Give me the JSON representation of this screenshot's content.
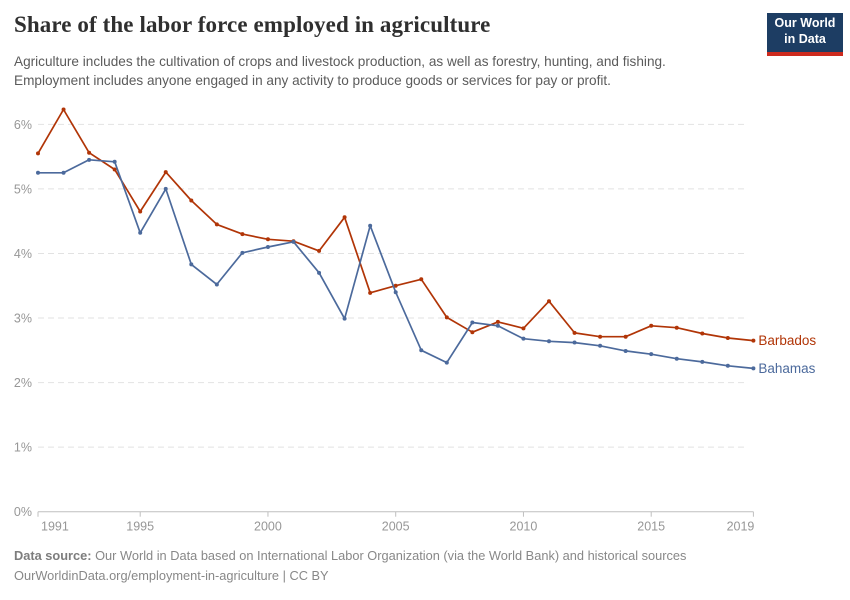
{
  "header": {
    "title": "Share of the labor force employed in agriculture",
    "subtitle_line1": "Agriculture includes the cultivation of crops and livestock production, as well as forestry, hunting, and fishing.",
    "subtitle_line2": "Employment includes anyone engaged in any activity to produce goods or services for pay or profit."
  },
  "logo": {
    "line1": "Our World",
    "line2": "in Data",
    "bg_color": "#1D3D63",
    "stripe_color": "#CD2A1E"
  },
  "chart_data": {
    "type": "line",
    "title": "Share of the labor force employed in agriculture",
    "unit": "%",
    "x": [
      1991,
      1992,
      1993,
      1994,
      1995,
      1996,
      1997,
      1998,
      1999,
      2000,
      2001,
      2002,
      2003,
      2004,
      2005,
      2006,
      2007,
      2008,
      2009,
      2010,
      2011,
      2012,
      2013,
      2014,
      2015,
      2016,
      2017,
      2018,
      2019
    ],
    "series": [
      {
        "name": "Barbados",
        "color": "#B13507",
        "values": [
          5.55,
          6.23,
          5.56,
          5.3,
          4.65,
          5.26,
          4.82,
          4.45,
          4.3,
          4.22,
          4.19,
          4.04,
          4.56,
          3.39,
          3.5,
          3.6,
          3.01,
          2.78,
          2.94,
          2.84,
          3.26,
          2.77,
          2.71,
          2.71,
          2.88,
          2.85,
          2.76,
          2.69,
          2.65
        ]
      },
      {
        "name": "Bahamas",
        "color": "#4C6A9C",
        "values": [
          5.25,
          5.25,
          5.45,
          5.42,
          4.32,
          5.0,
          3.83,
          3.52,
          4.01,
          4.1,
          4.18,
          3.7,
          2.99,
          4.43,
          3.4,
          2.5,
          2.31,
          2.93,
          2.88,
          2.68,
          2.64,
          2.62,
          2.57,
          2.49,
          2.44,
          2.37,
          2.32,
          2.26,
          2.22
        ]
      }
    ],
    "xticks": [
      1991,
      1995,
      2000,
      2005,
      2010,
      2015,
      2019
    ],
    "yticks": [
      0,
      1,
      2,
      3,
      4,
      5,
      6
    ],
    "ytick_labels": [
      "0%",
      "1%",
      "2%",
      "3%",
      "4%",
      "5%",
      "6%"
    ],
    "xlim": [
      1991,
      2019
    ],
    "ylim": [
      0,
      6.5
    ],
    "grid": "horizontal dashed",
    "legend": "line-end labels"
  },
  "footer": {
    "source_label": "Data source:",
    "source_text": " Our World in Data based on International Labor Organization (via the World Bank) and historical sources",
    "license_line": "OurWorldinData.org/employment-in-agriculture | CC BY"
  },
  "colors": {
    "grid": "#E2E2E2",
    "axis": "#BFBFBF",
    "tick_text": "#979797"
  }
}
